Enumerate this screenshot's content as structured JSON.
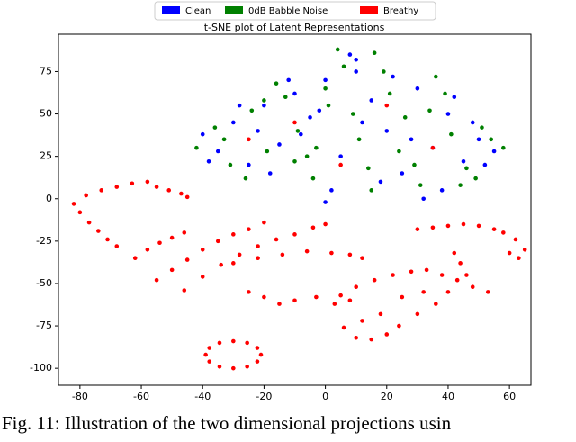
{
  "chart_data": {
    "type": "scatter",
    "title": "t-SNE plot of Latent Representations",
    "caption": "Fig. 11: Illustration of the two dimensional projections usin",
    "xlim": [
      -87,
      67
    ],
    "ylim": [
      -110,
      97
    ],
    "xticks": [
      -80,
      -60,
      -40,
      -20,
      0,
      20,
      40,
      60
    ],
    "yticks": [
      -100,
      -75,
      -50,
      -25,
      0,
      25,
      50,
      75
    ],
    "grid": false,
    "legend": "top",
    "series": [
      {
        "name": "Clean",
        "color": "#0000ff",
        "x": [
          -40,
          -35,
          -30,
          -25,
          -20,
          -15,
          -10,
          -5,
          0,
          5,
          10,
          15,
          20,
          25,
          30,
          35,
          40,
          45,
          50,
          55,
          -38,
          -28,
          -18,
          -8,
          2,
          12,
          22,
          32,
          42,
          52,
          -22,
          -12,
          -2,
          8,
          18,
          28,
          38,
          48,
          10,
          0
        ],
        "values": [
          38,
          28,
          45,
          20,
          55,
          32,
          62,
          48,
          70,
          25,
          82,
          58,
          40,
          15,
          65,
          30,
          50,
          22,
          35,
          28,
          22,
          55,
          15,
          38,
          5,
          45,
          72,
          0,
          60,
          20,
          40,
          70,
          52,
          85,
          10,
          35,
          5,
          45,
          75,
          -2
        ]
      },
      {
        "name": "0dB Babble Noise",
        "color": "#008000",
        "x": [
          -42,
          -36,
          -31,
          -24,
          -19,
          -13,
          -9,
          -4,
          1,
          6,
          11,
          16,
          21,
          26,
          31,
          36,
          41,
          46,
          51,
          58,
          -33,
          -26,
          -16,
          -6,
          4,
          14,
          24,
          34,
          44,
          54,
          -20,
          -10,
          0,
          9,
          19,
          29,
          39,
          49,
          15,
          -3
        ],
        "values": [
          30,
          42,
          20,
          52,
          28,
          60,
          40,
          12,
          55,
          78,
          35,
          86,
          62,
          48,
          8,
          72,
          38,
          18,
          42,
          30,
          35,
          12,
          68,
          25,
          88,
          18,
          28,
          52,
          8,
          35,
          58,
          22,
          65,
          50,
          75,
          20,
          62,
          12,
          5,
          30
        ]
      },
      {
        "name": "Breathy",
        "color": "#ff0000",
        "x": [
          -82,
          -80,
          -77,
          -74,
          -71,
          -68,
          -78,
          -73,
          -68,
          -63,
          -58,
          -55,
          -51,
          -47,
          -45,
          -62,
          -58,
          -54,
          -50,
          -46,
          -55,
          -50,
          -45,
          -40,
          -35,
          -30,
          -25,
          -20,
          -46,
          -40,
          -34,
          -28,
          -22,
          -16,
          -10,
          -4,
          0,
          -30,
          -22,
          -14,
          -6,
          2,
          8,
          12,
          -25,
          -20,
          -15,
          -10,
          -3,
          3,
          8,
          5,
          10,
          16,
          22,
          28,
          33,
          38,
          43,
          48,
          53,
          30,
          35,
          40,
          45,
          50,
          55,
          58,
          62,
          65,
          63,
          60,
          42,
          44,
          46,
          40,
          36,
          30,
          24,
          20,
          15,
          10,
          6,
          12,
          18,
          25,
          32,
          -21,
          -22.2,
          -25.5,
          -30,
          -34.5,
          -37.8,
          -39,
          -37.8,
          -34.5,
          -30,
          -25.5,
          -22.2,
          -10,
          20,
          35,
          -25,
          5
        ],
        "values": [
          -3,
          -8,
          -14,
          -19,
          -24,
          -28,
          2,
          5,
          7,
          9,
          10,
          7,
          5,
          3,
          1,
          -35,
          -30,
          -26,
          -23,
          -20,
          -48,
          -42,
          -36,
          -30,
          -25,
          -21,
          -18,
          -14,
          -54,
          -46,
          -39,
          -33,
          -28,
          -24,
          -21,
          -17,
          -15,
          -38,
          -35,
          -33,
          -31,
          -32,
          -33,
          -35,
          -55,
          -58,
          -62,
          -60,
          -58,
          -62,
          -60,
          -57,
          -52,
          -48,
          -45,
          -43,
          -42,
          -45,
          -48,
          -52,
          -55,
          -18,
          -17,
          -16,
          -15,
          -16,
          -18,
          -20,
          -24,
          -30,
          -35,
          -32,
          -32,
          -38,
          -45,
          -55,
          -62,
          -68,
          -75,
          -80,
          -83,
          -82,
          -76,
          -72,
          -68,
          -58,
          -55,
          -92,
          -88,
          -85,
          -84,
          -85,
          -88,
          -92,
          -96,
          -99,
          -100,
          -99,
          -96,
          45,
          55,
          30,
          35,
          20
        ]
      }
    ]
  }
}
